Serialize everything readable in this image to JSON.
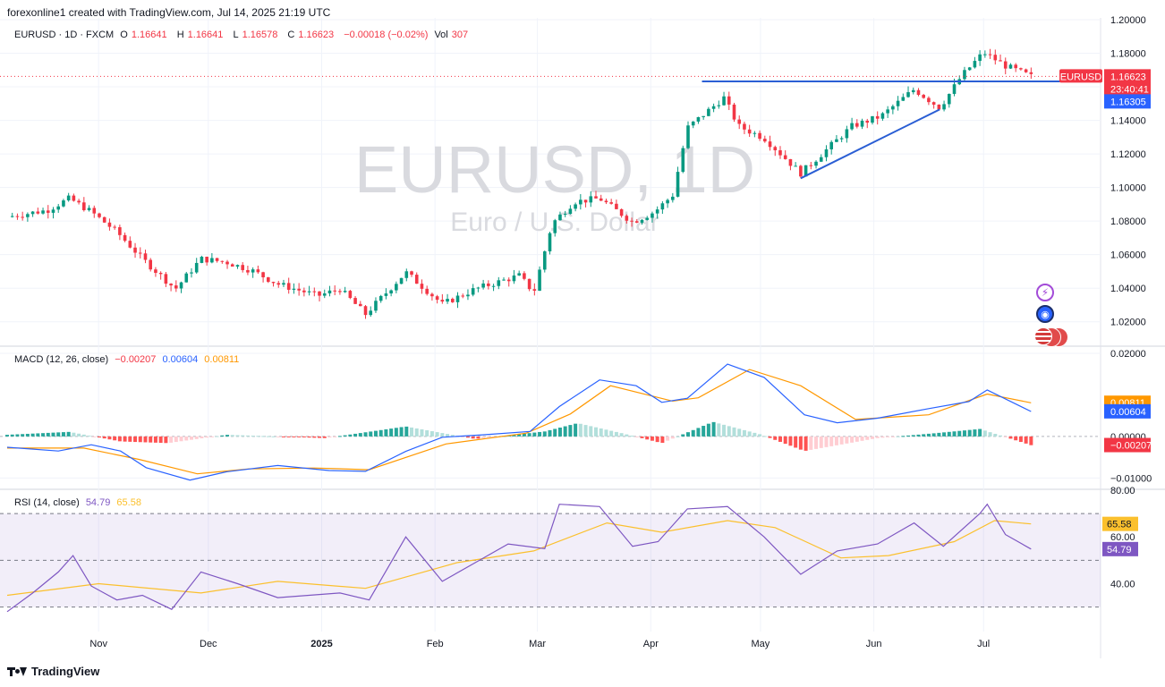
{
  "header": {
    "attribution": "forexonline1 created with TradingView.com, Jul 14, 2025 21:19 UTC"
  },
  "watermark": {
    "symbol": "EURUSD, 1D",
    "description": "Euro / U.S. Dollar"
  },
  "legend_main": {
    "symbol": "EURUSD · 1D · FXCM",
    "o_label": "O",
    "o_value": "1.16641",
    "h_label": "H",
    "h_value": "1.16641",
    "l_label": "L",
    "l_value": "1.16578",
    "c_label": "C",
    "c_value": "1.16623",
    "change": "−0.00018 (−0.02%)",
    "vol_label": "Vol",
    "vol_value": "307"
  },
  "legend_macd": {
    "title": "MACD (12, 26, close)",
    "hist": "−0.00207",
    "macd": "0.00604",
    "signal": "0.00811"
  },
  "legend_rsi": {
    "title": "RSI (14, close)",
    "rsi": "54.79",
    "ma": "65.58"
  },
  "footer": {
    "brand": "TradingView"
  },
  "colors": {
    "up": "#089981",
    "down": "#f23645",
    "macd": "#2962ff",
    "signal": "#ff9800",
    "rsi": "#7e57c2",
    "rsi_ma": "#fbc02d",
    "trendline": "#2a5ed4"
  },
  "chart_data": [
    {
      "type": "candlestick",
      "title": "EURUSD · 1D · FXCM",
      "x_ticks": [
        "Nov",
        "Dec",
        "2025",
        "Feb",
        "Mar",
        "Apr",
        "May",
        "Jun",
        "Jul"
      ],
      "y_ticks": [
        "1.20000",
        "1.18000",
        "1.16000",
        "1.14000",
        "1.12000",
        "1.10000",
        "1.08000",
        "1.06000",
        "1.04000",
        "1.02000"
      ],
      "ylim": [
        1.006,
        1.2
      ],
      "price_labels": [
        {
          "text": "EURUSD",
          "value": 1.16623,
          "color": "#f23645"
        },
        {
          "text": "1.16623",
          "value": 1.16623,
          "color": "#f23645"
        },
        {
          "text": "23:40:41",
          "value": 1.16623,
          "color": "#f23645"
        },
        {
          "text": "1.16305",
          "value": 1.16305,
          "color": "#2962ff"
        }
      ],
      "horizontal_line": {
        "value": 1.1632,
        "from_date": "2025-04-15"
      },
      "trendline": [
        {
          "date": "2025-05-12",
          "value": 1.1055
        },
        {
          "date": "2025-06-19",
          "value": 1.1465
        }
      ],
      "close_path": [
        {
          "date": "2024-10-07",
          "value": 1.0825
        },
        {
          "date": "2024-10-18",
          "value": 1.0865
        },
        {
          "date": "2024-10-24",
          "value": 1.0935
        },
        {
          "date": "2024-10-30",
          "value": 1.0855
        },
        {
          "date": "2024-11-06",
          "value": 1.0735
        },
        {
          "date": "2024-11-13",
          "value": 1.0575
        },
        {
          "date": "2024-11-22",
          "value": 1.0395
        },
        {
          "date": "2024-11-29",
          "value": 1.0575
        },
        {
          "date": "2024-12-06",
          "value": 1.0555
        },
        {
          "date": "2024-12-13",
          "value": 1.0505
        },
        {
          "date": "2024-12-20",
          "value": 1.0425
        },
        {
          "date": "2024-12-31",
          "value": 1.0355
        },
        {
          "date": "2025-01-06",
          "value": 1.0395
        },
        {
          "date": "2025-01-13",
          "value": 1.0245
        },
        {
          "date": "2025-01-24",
          "value": 1.0495
        },
        {
          "date": "2025-02-03",
          "value": 1.0305
        },
        {
          "date": "2025-02-12",
          "value": 1.0395
        },
        {
          "date": "2025-02-24",
          "value": 1.0475
        },
        {
          "date": "2025-02-28",
          "value": 1.0375
        },
        {
          "date": "2025-03-05",
          "value": 1.0785
        },
        {
          "date": "2025-03-11",
          "value": 1.0915
        },
        {
          "date": "2025-03-18",
          "value": 1.0935
        },
        {
          "date": "2025-03-27",
          "value": 1.0795
        },
        {
          "date": "2025-04-02",
          "value": 1.0855
        },
        {
          "date": "2025-04-07",
          "value": 1.0955
        },
        {
          "date": "2025-04-11",
          "value": 1.1355
        },
        {
          "date": "2025-04-21",
          "value": 1.1535
        },
        {
          "date": "2025-04-25",
          "value": 1.1365
        },
        {
          "date": "2025-05-02",
          "value": 1.1295
        },
        {
          "date": "2025-05-12",
          "value": 1.1085
        },
        {
          "date": "2025-05-20",
          "value": 1.1245
        },
        {
          "date": "2025-05-26",
          "value": 1.1365
        },
        {
          "date": "2025-06-03",
          "value": 1.1425
        },
        {
          "date": "2025-06-12",
          "value": 1.1585
        },
        {
          "date": "2025-06-19",
          "value": 1.1475
        },
        {
          "date": "2025-06-25",
          "value": 1.1665
        },
        {
          "date": "2025-07-01",
          "value": 1.1805
        },
        {
          "date": "2025-07-07",
          "value": 1.1725
        },
        {
          "date": "2025-07-14",
          "value": 1.1662
        }
      ]
    },
    {
      "type": "line",
      "title": "MACD (12, 26, close)",
      "y_ticks": [
        "0.02000",
        "0.00000",
        "−0.01000"
      ],
      "ylim": [
        -0.0125,
        0.0215
      ],
      "value_labels": [
        {
          "text": "0.00811",
          "value": 0.00811,
          "color": "#ff9800"
        },
        {
          "text": "0.00604",
          "value": 0.00604,
          "color": "#2962ff"
        },
        {
          "text": "−0.00207",
          "value": -0.00207,
          "color": "#f23645"
        }
      ],
      "series": [
        {
          "key": "macd",
          "points": [
            {
              "date": "2024-10-07",
              "value": -0.0026
            },
            {
              "date": "2024-10-21",
              "value": -0.0035
            },
            {
              "date": "2024-10-30",
              "value": -0.002
            },
            {
              "date": "2024-11-07",
              "value": -0.0035
            },
            {
              "date": "2024-11-14",
              "value": -0.0075
            },
            {
              "date": "2024-11-26",
              "value": -0.0105
            },
            {
              "date": "2024-12-06",
              "value": -0.0085
            },
            {
              "date": "2024-12-20",
              "value": -0.007
            },
            {
              "date": "2025-01-03",
              "value": -0.0082
            },
            {
              "date": "2025-01-13",
              "value": -0.0084
            },
            {
              "date": "2025-01-24",
              "value": -0.0036
            },
            {
              "date": "2025-02-03",
              "value": -0.0002
            },
            {
              "date": "2025-02-14",
              "value": 0.0004
            },
            {
              "date": "2025-02-27",
              "value": 0.0012
            },
            {
              "date": "2025-03-07",
              "value": 0.0072
            },
            {
              "date": "2025-03-18",
              "value": 0.0136
            },
            {
              "date": "2025-03-28",
              "value": 0.0122
            },
            {
              "date": "2025-04-04",
              "value": 0.0082
            },
            {
              "date": "2025-04-11",
              "value": 0.0092
            },
            {
              "date": "2025-04-22",
              "value": 0.0174
            },
            {
              "date": "2025-05-02",
              "value": 0.0142
            },
            {
              "date": "2025-05-13",
              "value": 0.0052
            },
            {
              "date": "2025-05-22",
              "value": 0.0033
            },
            {
              "date": "2025-06-02",
              "value": 0.0044
            },
            {
              "date": "2025-06-16",
              "value": 0.0067
            },
            {
              "date": "2025-06-27",
              "value": 0.0084
            },
            {
              "date": "2025-07-02",
              "value": 0.0112
            },
            {
              "date": "2025-07-14",
              "value": 0.006
            }
          ]
        },
        {
          "key": "signal",
          "points": [
            {
              "date": "2024-10-07",
              "value": -0.0028
            },
            {
              "date": "2024-10-28",
              "value": -0.0028
            },
            {
              "date": "2024-11-12",
              "value": -0.0055
            },
            {
              "date": "2024-11-28",
              "value": -0.009
            },
            {
              "date": "2024-12-12",
              "value": -0.0078
            },
            {
              "date": "2024-12-30",
              "value": -0.0076
            },
            {
              "date": "2025-01-14",
              "value": -0.008
            },
            {
              "date": "2025-02-04",
              "value": -0.0018
            },
            {
              "date": "2025-02-26",
              "value": 0.0008
            },
            {
              "date": "2025-03-10",
              "value": 0.0054
            },
            {
              "date": "2025-03-21",
              "value": 0.0122
            },
            {
              "date": "2025-04-07",
              "value": 0.0085
            },
            {
              "date": "2025-04-14",
              "value": 0.0093
            },
            {
              "date": "2025-04-28",
              "value": 0.0161
            },
            {
              "date": "2025-05-12",
              "value": 0.0122
            },
            {
              "date": "2025-05-27",
              "value": 0.0041
            },
            {
              "date": "2025-06-16",
              "value": 0.0052
            },
            {
              "date": "2025-07-02",
              "value": 0.0102
            },
            {
              "date": "2025-07-14",
              "value": 0.0081
            }
          ]
        },
        {
          "key": "histogram",
          "points": [
            {
              "date": "2024-10-07",
              "value": 0.0004
            },
            {
              "date": "2024-10-24",
              "value": 0.0011
            },
            {
              "date": "2024-11-07",
              "value": -0.0012
            },
            {
              "date": "2024-11-20",
              "value": -0.0016
            },
            {
              "date": "2024-12-06",
              "value": 0.0004
            },
            {
              "date": "2025-01-02",
              "value": -0.0004
            },
            {
              "date": "2025-01-24",
              "value": 0.0024
            },
            {
              "date": "2025-02-12",
              "value": -0.0006
            },
            {
              "date": "2025-03-03",
              "value": 0.0012
            },
            {
              "date": "2025-03-12",
              "value": 0.0032
            },
            {
              "date": "2025-03-24",
              "value": 0.0008
            },
            {
              "date": "2025-04-04",
              "value": -0.0016
            },
            {
              "date": "2025-04-18",
              "value": 0.0035
            },
            {
              "date": "2025-05-01",
              "value": 0.0005
            },
            {
              "date": "2025-05-13",
              "value": -0.0035
            },
            {
              "date": "2025-06-02",
              "value": -0.0004
            },
            {
              "date": "2025-06-18",
              "value": 0.0008
            },
            {
              "date": "2025-06-30",
              "value": 0.0018
            },
            {
              "date": "2025-07-14",
              "value": -0.0021
            }
          ]
        }
      ]
    },
    {
      "type": "line",
      "title": "RSI (14, close)",
      "y_ticks": [
        "80.00",
        "60.00",
        "40.00"
      ],
      "ylim": [
        19.5,
        80
      ],
      "bands": {
        "upper": 70,
        "middle": 50,
        "lower": 30
      },
      "value_labels": [
        {
          "text": "65.58",
          "value": 65.58,
          "color": "#fbc02d"
        },
        {
          "text": "54.79",
          "value": 54.79,
          "color": "#7e57c2"
        }
      ],
      "series": [
        {
          "key": "rsi",
          "points": [
            {
              "date": "2024-10-07",
              "value": 28
            },
            {
              "date": "2024-10-14",
              "value": 36
            },
            {
              "date": "2024-10-21",
              "value": 45
            },
            {
              "date": "2024-10-25",
              "value": 52
            },
            {
              "date": "2024-10-30",
              "value": 39
            },
            {
              "date": "2024-11-06",
              "value": 33
            },
            {
              "date": "2024-11-13",
              "value": 35
            },
            {
              "date": "2024-11-21",
              "value": 29
            },
            {
              "date": "2024-11-29",
              "value": 45
            },
            {
              "date": "2024-12-09",
              "value": 40
            },
            {
              "date": "2024-12-20",
              "value": 34
            },
            {
              "date": "2025-01-06",
              "value": 36
            },
            {
              "date": "2025-01-14",
              "value": 33
            },
            {
              "date": "2025-01-24",
              "value": 60
            },
            {
              "date": "2025-02-03",
              "value": 41
            },
            {
              "date": "2025-02-12",
              "value": 49
            },
            {
              "date": "2025-02-21",
              "value": 57
            },
            {
              "date": "2025-03-03",
              "value": 55
            },
            {
              "date": "2025-03-07",
              "value": 74
            },
            {
              "date": "2025-03-18",
              "value": 73
            },
            {
              "date": "2025-03-27",
              "value": 56
            },
            {
              "date": "2025-04-03",
              "value": 58
            },
            {
              "date": "2025-04-11",
              "value": 72
            },
            {
              "date": "2025-04-22",
              "value": 73
            },
            {
              "date": "2025-05-02",
              "value": 60
            },
            {
              "date": "2025-05-12",
              "value": 44
            },
            {
              "date": "2025-05-22",
              "value": 54
            },
            {
              "date": "2025-06-02",
              "value": 57
            },
            {
              "date": "2025-06-12",
              "value": 66
            },
            {
              "date": "2025-06-20",
              "value": 56
            },
            {
              "date": "2025-06-30",
              "value": 70
            },
            {
              "date": "2025-07-02",
              "value": 74
            },
            {
              "date": "2025-07-07",
              "value": 61
            },
            {
              "date": "2025-07-14",
              "value": 54.79
            }
          ]
        },
        {
          "key": "rsi_ma",
          "points": [
            {
              "date": "2024-10-07",
              "value": 35
            },
            {
              "date": "2024-11-01",
              "value": 40
            },
            {
              "date": "2024-11-29",
              "value": 36
            },
            {
              "date": "2024-12-20",
              "value": 41
            },
            {
              "date": "2025-01-13",
              "value": 38
            },
            {
              "date": "2025-02-07",
              "value": 49
            },
            {
              "date": "2025-02-28",
              "value": 54
            },
            {
              "date": "2025-03-20",
              "value": 66
            },
            {
              "date": "2025-04-04",
              "value": 62
            },
            {
              "date": "2025-04-22",
              "value": 67
            },
            {
              "date": "2025-05-05",
              "value": 64
            },
            {
              "date": "2025-05-23",
              "value": 51
            },
            {
              "date": "2025-06-05",
              "value": 52
            },
            {
              "date": "2025-06-23",
              "value": 58
            },
            {
              "date": "2025-07-04",
              "value": 67
            },
            {
              "date": "2025-07-14",
              "value": 65.58
            }
          ]
        }
      ]
    }
  ]
}
